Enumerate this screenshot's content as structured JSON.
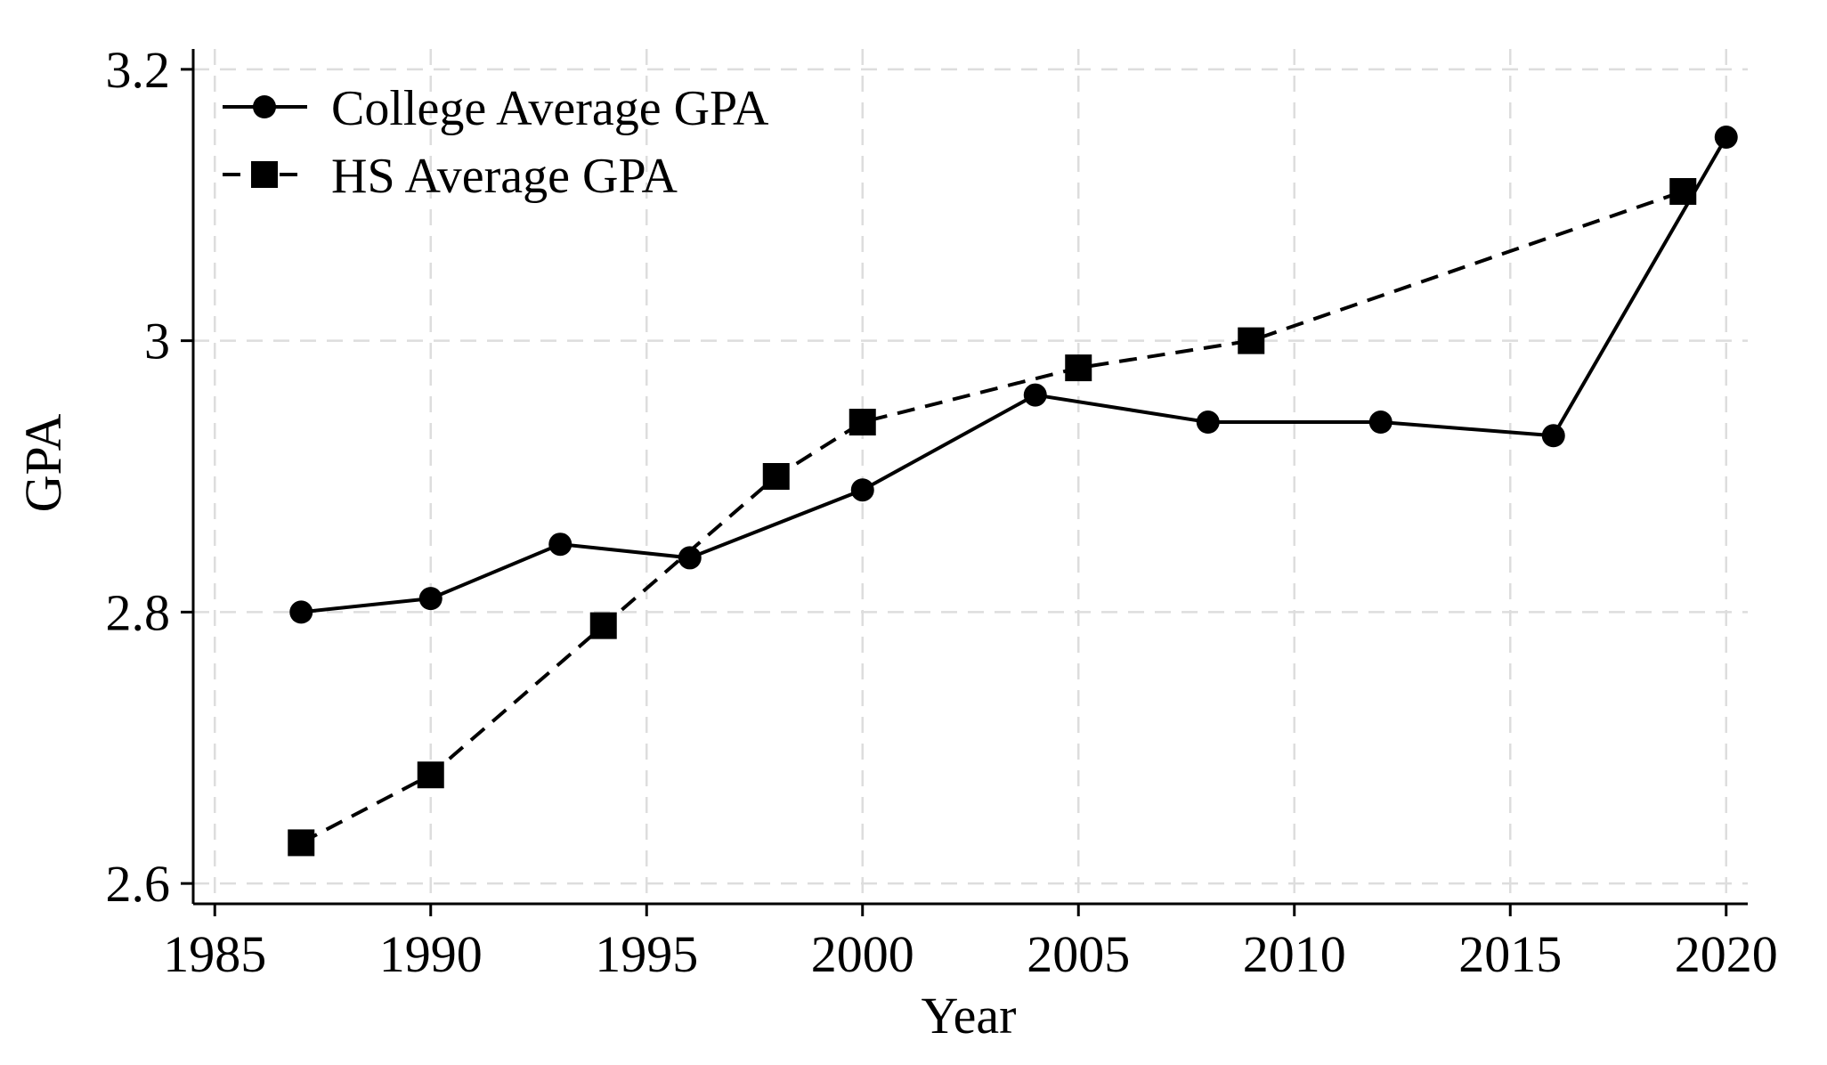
{
  "chart_data": {
    "type": "line",
    "title": "",
    "xlabel": "Year",
    "ylabel": "GPA",
    "xlim": [
      1984.5,
      2020.5
    ],
    "ylim": [
      2.585,
      3.215
    ],
    "xticks": [
      1985,
      1990,
      1995,
      2000,
      2005,
      2010,
      2015,
      2020
    ],
    "xtick_labels": [
      "1985",
      "1990",
      "1995",
      "2000",
      "2005",
      "2010",
      "2015",
      "2020"
    ],
    "yticks": [
      2.6,
      2.8,
      3.0,
      3.2
    ],
    "ytick_labels": [
      "2.6",
      "2.8",
      "3",
      "3.2"
    ],
    "grid": true,
    "legend_position": "top-left",
    "colors": {
      "line": "#000000",
      "grid": "#dddddd",
      "axis": "#000000"
    },
    "series": [
      {
        "name": "College Average GPA",
        "marker": "circle",
        "line_style": "solid",
        "x": [
          1987,
          1990,
          1993,
          1996,
          2000,
          2004,
          2008,
          2012,
          2016,
          2020
        ],
        "y": [
          2.8,
          2.81,
          2.85,
          2.84,
          2.89,
          2.96,
          2.94,
          2.94,
          2.93,
          3.15
        ]
      },
      {
        "name": "HS Average GPA",
        "marker": "square",
        "line_style": "dashed",
        "x": [
          1987,
          1990,
          1994,
          1998,
          2000,
          2005,
          2009,
          2019
        ],
        "y": [
          2.63,
          2.68,
          2.79,
          2.9,
          2.94,
          2.98,
          3.0,
          3.11
        ]
      }
    ]
  }
}
